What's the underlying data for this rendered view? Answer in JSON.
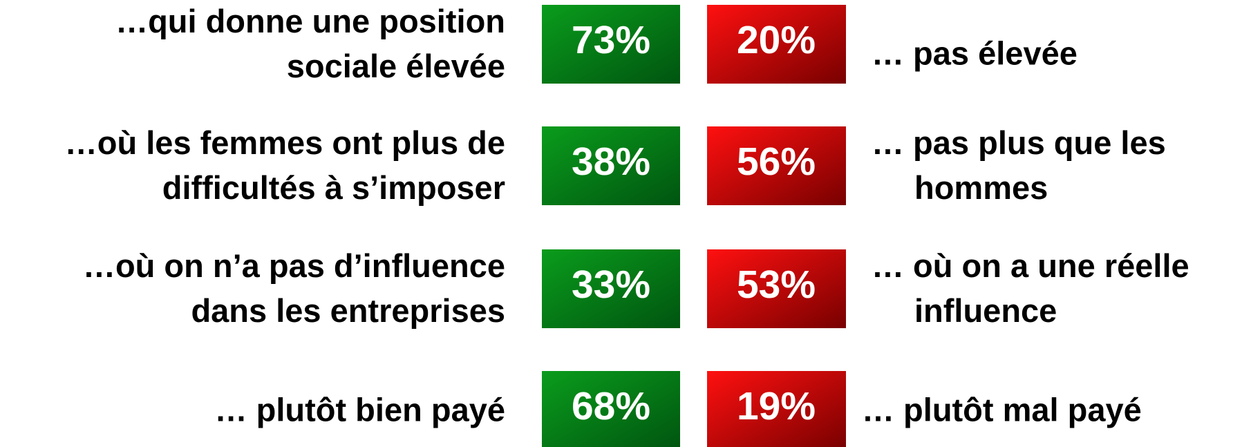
{
  "rows": [
    {
      "left": [
        "…qui donne une position",
        "sociale élevée"
      ],
      "positive": "73%",
      "negative": "20%",
      "right": [
        "… pas élevée"
      ]
    },
    {
      "left": [
        "…où les femmes ont plus de",
        "difficultés à s’imposer"
      ],
      "positive": "38%",
      "negative": "56%",
      "right": [
        "… pas plus que les",
        "hommes"
      ]
    },
    {
      "left": [
        "…où on n’a pas d’influence",
        "dans les entreprises"
      ],
      "positive": "33%",
      "negative": "53%",
      "right": [
        "… où on a une réelle",
        "influence"
      ]
    },
    {
      "left": [
        "… plutôt bien payé"
      ],
      "positive": "68%",
      "negative": "19%",
      "right": [
        "… plutôt mal payé"
      ]
    }
  ]
}
